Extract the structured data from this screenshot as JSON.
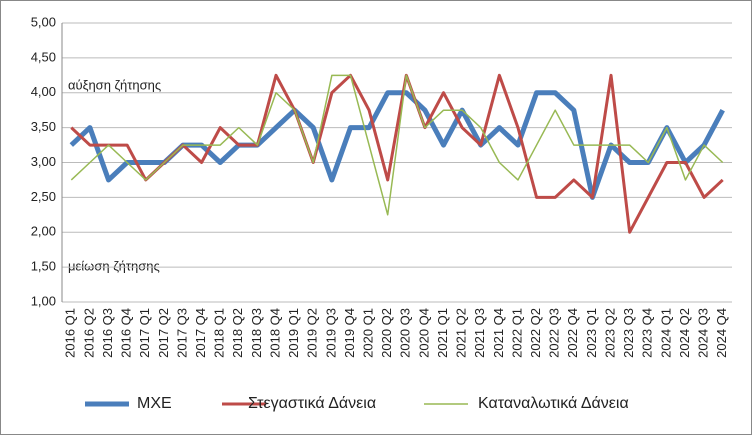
{
  "chart_data": {
    "type": "line",
    "annotations": [
      "αύξηση ζήτησης",
      "μείωση ζήτησης"
    ],
    "categories": [
      "2016 Q1",
      "2016 Q2",
      "2016 Q3",
      "2016 Q4",
      "2017 Q1",
      "2017 Q2",
      "2017 Q3",
      "2017 Q4",
      "2018 Q1",
      "2018 Q2",
      "2018 Q3",
      "2018 Q4",
      "2019 Q1",
      "2019 Q2",
      "2019 Q3",
      "2019 Q4",
      "2020 Q1",
      "2020 Q2",
      "2020 Q3",
      "2020 Q4",
      "2021 Q1",
      "2021 Q2",
      "2021 Q3",
      "2021 Q4",
      "2022 Q1",
      "2022 Q2",
      "2022 Q3",
      "2022 Q4",
      "2023 Q1",
      "2023 Q2",
      "2023 Q3",
      "2023 Q4",
      "2024 Q1",
      "2024 Q2",
      "2024 Q3",
      "2024 Q4"
    ],
    "series": [
      {
        "name": "ΜΧΕ",
        "color": "#4a7ebb",
        "width": 5,
        "values": [
          3.25,
          3.5,
          2.75,
          3.0,
          3.0,
          3.0,
          3.25,
          3.25,
          3.0,
          3.25,
          3.25,
          3.5,
          3.75,
          3.5,
          2.75,
          3.5,
          3.5,
          4.0,
          4.0,
          3.75,
          3.25,
          3.75,
          3.25,
          3.5,
          3.25,
          4.0,
          4.0,
          3.75,
          2.5,
          3.25,
          3.0,
          3.0,
          3.5,
          3.0,
          3.25,
          3.75
        ]
      },
      {
        "name": "Στεγαστικά Δάνεια",
        "color": "#be4b48",
        "width": 3,
        "values": [
          3.5,
          3.25,
          3.25,
          3.25,
          2.75,
          3.0,
          3.25,
          3.0,
          3.5,
          3.25,
          3.25,
          4.25,
          3.75,
          3.0,
          4.0,
          4.25,
          3.75,
          2.75,
          4.25,
          3.5,
          4.0,
          3.5,
          3.25,
          4.25,
          3.5,
          2.5,
          2.5,
          2.75,
          2.5,
          4.25,
          2.0,
          2.5,
          3.0,
          3.0,
          2.5,
          2.75
        ]
      },
      {
        "name": "Καταναλωτικά Δάνεια",
        "color": "#98b954",
        "width": 1.5,
        "values": [
          2.75,
          3.0,
          3.25,
          3.0,
          2.75,
          3.0,
          3.25,
          3.25,
          3.25,
          3.5,
          3.25,
          4.0,
          3.75,
          3.0,
          4.25,
          4.25,
          3.25,
          2.25,
          4.25,
          3.5,
          3.75,
          3.75,
          3.5,
          3.0,
          2.75,
          3.25,
          3.75,
          3.25,
          3.25,
          3.25,
          3.25,
          3.0,
          3.5,
          2.75,
          3.25,
          3.0
        ]
      }
    ],
    "ylim": [
      1,
      5
    ],
    "yticks": [
      {
        "value": 1,
        "label": "1,00"
      },
      {
        "value": 1.5,
        "label": "1,50"
      },
      {
        "value": 2,
        "label": "2,00"
      },
      {
        "value": 2.5,
        "label": "2,50"
      },
      {
        "value": 3,
        "label": "3,00"
      },
      {
        "value": 3.5,
        "label": "3,50"
      },
      {
        "value": 4,
        "label": "4,00"
      },
      {
        "value": 4.5,
        "label": "4,50"
      },
      {
        "value": 5,
        "label": "5,00"
      }
    ],
    "grid": true,
    "legend": "bottom"
  }
}
